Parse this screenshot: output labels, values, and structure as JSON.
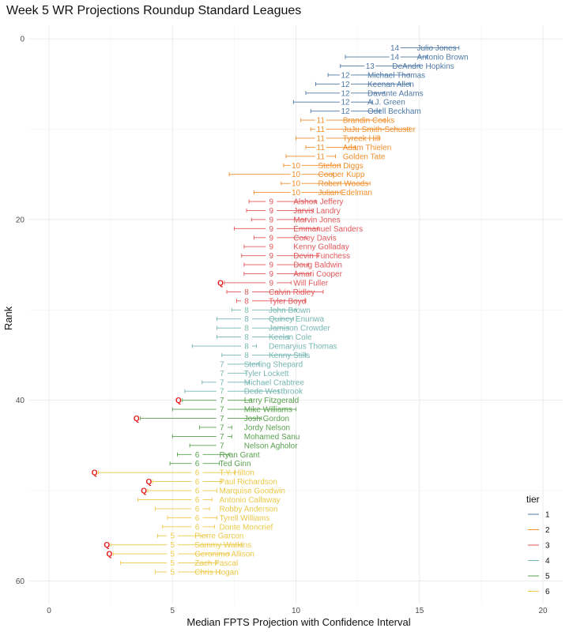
{
  "chart_data": {
    "type": "scatter",
    "title": "Week 5 WR Projections Roundup Standard Leagues",
    "xlabel": "Median FPTS Projection with Confidence Interval",
    "ylabel": "Rank",
    "xlim": [
      -0.8,
      20.8
    ],
    "ylim": [
      -1.5,
      62.5
    ],
    "y_reversed": true,
    "x_ticks": [
      0,
      5,
      10,
      15,
      20
    ],
    "y_ticks": [
      0,
      20,
      40,
      60
    ],
    "grid": true,
    "legend": {
      "title": "tier",
      "placement": "bottom-right",
      "items": [
        {
          "tier": "1",
          "color": "#4E79A7"
        },
        {
          "tier": "2",
          "color": "#F28E2B"
        },
        {
          "tier": "3",
          "color": "#E15759"
        },
        {
          "tier": "4",
          "color": "#76B7B2"
        },
        {
          "tier": "5",
          "color": "#59A14F"
        },
        {
          "tier": "6",
          "color": "#EDC948"
        }
      ]
    },
    "players": [
      {
        "name": "Julio Jones",
        "rank": 1,
        "tier": 1,
        "median": 14,
        "lo": 13.8,
        "hi": 16.6,
        "q": false
      },
      {
        "name": "Antonio Brown",
        "rank": 2,
        "tier": 1,
        "median": 14,
        "lo": 12.0,
        "hi": 15.3,
        "q": false
      },
      {
        "name": "DeAndre Hopkins",
        "rank": 3,
        "tier": 1,
        "median": 13,
        "lo": 11.8,
        "hi": 15.0,
        "q": false
      },
      {
        "name": "Michael Thomas",
        "rank": 4,
        "tier": 1,
        "median": 12,
        "lo": 11.3,
        "hi": 14.6,
        "q": false
      },
      {
        "name": "Keenan Allen",
        "rank": 5,
        "tier": 1,
        "median": 12,
        "lo": 10.8,
        "hi": 14.6,
        "q": false
      },
      {
        "name": "Davante Adams",
        "rank": 6,
        "tier": 1,
        "median": 12,
        "lo": 10.4,
        "hi": 13.6,
        "q": false
      },
      {
        "name": "A.J. Green",
        "rank": 7,
        "tier": 1,
        "median": 12,
        "lo": 9.9,
        "hi": 13.1,
        "q": false
      },
      {
        "name": "Odell Beckham",
        "rank": 8,
        "tier": 1,
        "median": 12,
        "lo": 10.6,
        "hi": 13.4,
        "q": false
      },
      {
        "name": "Brandin Cooks",
        "rank": 9,
        "tier": 2,
        "median": 11,
        "lo": 10.2,
        "hi": 13.6,
        "q": false
      },
      {
        "name": "JuJu Smith-Schuster",
        "rank": 10,
        "tier": 2,
        "median": 11,
        "lo": 10.6,
        "hi": 14.6,
        "q": false
      },
      {
        "name": "Tyreek Hill",
        "rank": 11,
        "tier": 2,
        "median": 11,
        "lo": 10.0,
        "hi": 13.4,
        "q": false
      },
      {
        "name": "Adam Thielen",
        "rank": 12,
        "tier": 2,
        "median": 11,
        "lo": 10.4,
        "hi": 12.4,
        "q": false
      },
      {
        "name": "Golden Tate",
        "rank": 13,
        "tier": 2,
        "median": 11,
        "lo": 9.6,
        "hi": 11.6,
        "q": false
      },
      {
        "name": "Stefon Diggs",
        "rank": 14,
        "tier": 2,
        "median": 10,
        "lo": 9.5,
        "hi": 11.8,
        "q": false
      },
      {
        "name": "Cooper Kupp",
        "rank": 15,
        "tier": 2,
        "median": 10,
        "lo": 7.3,
        "hi": 11.5,
        "q": false
      },
      {
        "name": "Robert Woods",
        "rank": 16,
        "tier": 2,
        "median": 10,
        "lo": 9.4,
        "hi": 13.0,
        "q": false
      },
      {
        "name": "Julian Edelman",
        "rank": 17,
        "tier": 2,
        "median": 10,
        "lo": 8.3,
        "hi": 11.8,
        "q": false
      },
      {
        "name": "Alshon Jeffery",
        "rank": 18,
        "tier": 3,
        "median": 9,
        "lo": 8.1,
        "hi": 10.8,
        "q": false
      },
      {
        "name": "Jarvis Landry",
        "rank": 19,
        "tier": 3,
        "median": 9,
        "lo": 8.0,
        "hi": 10.7,
        "q": false
      },
      {
        "name": "Marvin Jones",
        "rank": 20,
        "tier": 3,
        "median": 9,
        "lo": 8.2,
        "hi": 10.4,
        "q": false
      },
      {
        "name": "Emmanuel Sanders",
        "rank": 21,
        "tier": 3,
        "median": 9,
        "lo": 7.5,
        "hi": 10.9,
        "q": false
      },
      {
        "name": "Corey Davis",
        "rank": 22,
        "tier": 3,
        "median": 9,
        "lo": 8.3,
        "hi": 10.4,
        "q": false
      },
      {
        "name": "Kenny Golladay",
        "rank": 23,
        "tier": 3,
        "median": 9,
        "lo": 7.9,
        "hi": 9.2,
        "q": false
      },
      {
        "name": "Devin Funchess",
        "rank": 24,
        "tier": 3,
        "median": 9,
        "lo": 7.8,
        "hi": 10.9,
        "q": false
      },
      {
        "name": "Doug Baldwin",
        "rank": 25,
        "tier": 3,
        "median": 9,
        "lo": 7.9,
        "hi": 10.5,
        "q": false
      },
      {
        "name": "Amari Cooper",
        "rank": 26,
        "tier": 3,
        "median": 9,
        "lo": 7.9,
        "hi": 10.6,
        "q": false
      },
      {
        "name": "Will Fuller",
        "rank": 27,
        "tier": 3,
        "median": 9,
        "lo": 7.1,
        "hi": 9.8,
        "q": true
      },
      {
        "name": "Calvin Ridley",
        "rank": 28,
        "tier": 3,
        "median": 8,
        "lo": 7.2,
        "hi": 11.1,
        "q": false
      },
      {
        "name": "Tyler Boyd",
        "rank": 29,
        "tier": 3,
        "median": 8,
        "lo": 7.6,
        "hi": 10.4,
        "q": false
      },
      {
        "name": "John Brown",
        "rank": 30,
        "tier": 4,
        "median": 8,
        "lo": 7.4,
        "hi": 10.0,
        "q": false
      },
      {
        "name": "Quincy Enunwa",
        "rank": 31,
        "tier": 4,
        "median": 8,
        "lo": 6.8,
        "hi": 9.9,
        "q": false
      },
      {
        "name": "Jamison Crowder",
        "rank": 32,
        "tier": 4,
        "median": 8,
        "lo": 6.8,
        "hi": 9.7,
        "q": false
      },
      {
        "name": "Keelan Cole",
        "rank": 33,
        "tier": 4,
        "median": 8,
        "lo": 6.8,
        "hi": 9.7,
        "q": false
      },
      {
        "name": "Demaryius Thomas",
        "rank": 34,
        "tier": 4,
        "median": 8,
        "lo": 5.8,
        "hi": 8.4,
        "q": false
      },
      {
        "name": "Kenny Stills",
        "rank": 35,
        "tier": 4,
        "median": 8,
        "lo": 7.0,
        "hi": 10.4,
        "q": false
      },
      {
        "name": "Sterling Shepard",
        "rank": 36,
        "tier": 4,
        "median": 7,
        "lo": 6.8,
        "hi": 8.5,
        "q": false
      },
      {
        "name": "Tyler Lockett",
        "rank": 37,
        "tier": 4,
        "median": 7,
        "lo": 6.9,
        "hi": 8.0,
        "q": false
      },
      {
        "name": "Michael Crabtree",
        "rank": 38,
        "tier": 4,
        "median": 7,
        "lo": 6.2,
        "hi": 8.1,
        "q": false
      },
      {
        "name": "Dede Westbrook",
        "rank": 39,
        "tier": 4,
        "median": 7,
        "lo": 5.5,
        "hi": 9.3,
        "q": false
      },
      {
        "name": "Larry Fitzgerald",
        "rank": 40,
        "tier": 5,
        "median": 7,
        "lo": 5.4,
        "hi": 8.2,
        "q": true
      },
      {
        "name": "Mike Williams",
        "rank": 41,
        "tier": 5,
        "median": 7,
        "lo": 5.0,
        "hi": 10.0,
        "q": false
      },
      {
        "name": "Josh Gordon",
        "rank": 42,
        "tier": 5,
        "median": 7,
        "lo": 3.7,
        "hi": 8.6,
        "q": true
      },
      {
        "name": "Jordy Nelson",
        "rank": 43,
        "tier": 5,
        "median": 7,
        "lo": 6.1,
        "hi": 7.4,
        "q": false
      },
      {
        "name": "Mohamed Sanu",
        "rank": 44,
        "tier": 5,
        "median": 7,
        "lo": 5.0,
        "hi": 7.4,
        "q": false
      },
      {
        "name": "Nelson Agholor",
        "rank": 45,
        "tier": 5,
        "median": 7,
        "lo": 5.7,
        "hi": 7.2,
        "q": false
      },
      {
        "name": "Ryan Grant",
        "rank": 46,
        "tier": 5,
        "median": 6,
        "lo": 5.2,
        "hi": 7.3,
        "q": false
      },
      {
        "name": "Ted Ginn",
        "rank": 47,
        "tier": 5,
        "median": 6,
        "lo": 4.9,
        "hi": 6.9,
        "q": false
      },
      {
        "name": "T.Y. Hilton",
        "rank": 48,
        "tier": 6,
        "median": 6,
        "lo": 2.0,
        "hi": 7.5,
        "q": true
      },
      {
        "name": "Paul Richardson",
        "rank": 49,
        "tier": 6,
        "median": 6,
        "lo": 4.2,
        "hi": 7.0,
        "q": true
      },
      {
        "name": "Marquise Goodwin",
        "rank": 50,
        "tier": 6,
        "median": 6,
        "lo": 4.0,
        "hi": 6.8,
        "q": true
      },
      {
        "name": "Antonio Callaway",
        "rank": 51,
        "tier": 6,
        "median": 6,
        "lo": 3.6,
        "hi": 6.6,
        "q": false
      },
      {
        "name": "Robby Anderson",
        "rank": 52,
        "tier": 6,
        "median": 6,
        "lo": 4.3,
        "hi": 6.5,
        "q": false
      },
      {
        "name": "Tyrell Williams",
        "rank": 53,
        "tier": 6,
        "median": 6,
        "lo": 4.8,
        "hi": 6.8,
        "q": false
      },
      {
        "name": "Donte Moncrief",
        "rank": 54,
        "tier": 6,
        "median": 6,
        "lo": 4.6,
        "hi": 6.7,
        "q": false
      },
      {
        "name": "Pierre Garcon",
        "rank": 55,
        "tier": 6,
        "median": 5,
        "lo": 4.4,
        "hi": 6.4,
        "q": false
      },
      {
        "name": "Sammy Watkins",
        "rank": 56,
        "tier": 6,
        "median": 5,
        "lo": 2.5,
        "hi": 7.8,
        "q": true
      },
      {
        "name": "Geronimo Allison",
        "rank": 57,
        "tier": 6,
        "median": 5,
        "lo": 2.6,
        "hi": 7.3,
        "q": true
      },
      {
        "name": "Zach Pascal",
        "rank": 58,
        "tier": 6,
        "median": 5,
        "lo": 2.9,
        "hi": 6.8,
        "q": false
      },
      {
        "name": "Chris Hogan",
        "rank": 59,
        "tier": 6,
        "median": 5,
        "lo": 4.3,
        "hi": 6.9,
        "q": false
      }
    ],
    "q_marker": "Q"
  }
}
